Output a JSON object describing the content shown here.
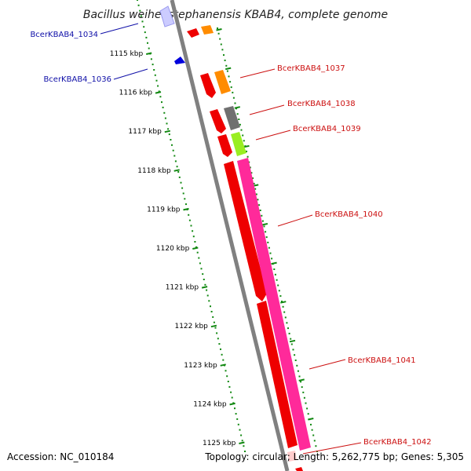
{
  "title": "Bacillus weihenstephanensis KBAB4, complete genome",
  "footer": {
    "accession": "Accession: NC_010184",
    "topology": "Topology: circular; Length: 5,262,775 bp; Genes: 5,305"
  },
  "ruler": {
    "ticks": [
      "1115 kbp",
      "1116 kbp",
      "1117 kbp",
      "1118 kbp",
      "1119 kbp",
      "1120 kbp",
      "1121 kbp",
      "1122 kbp",
      "1123 kbp",
      "1124 kbp",
      "1125 kbp"
    ]
  },
  "gene_labels_left": [
    "BcerKBAB4_1034",
    "BcerKBAB4_1036"
  ],
  "gene_labels_right": [
    "BcerKBAB4_1037",
    "BcerKBAB4_1038",
    "BcerKBAB4_1039",
    "BcerKBAB4_1040",
    "BcerKBAB4_1041",
    "BcerKBAB4_1042"
  ],
  "colors": {
    "cds": "#ee0000",
    "rna_orange": "#ff8c00",
    "gray": "#707070",
    "lime": "#99ee22",
    "magenta": "#ff2a9a",
    "blue": "#0000dd",
    "light_blue": "#ccccff",
    "ruler_green": "#118811",
    "backbone": "#808080"
  }
}
